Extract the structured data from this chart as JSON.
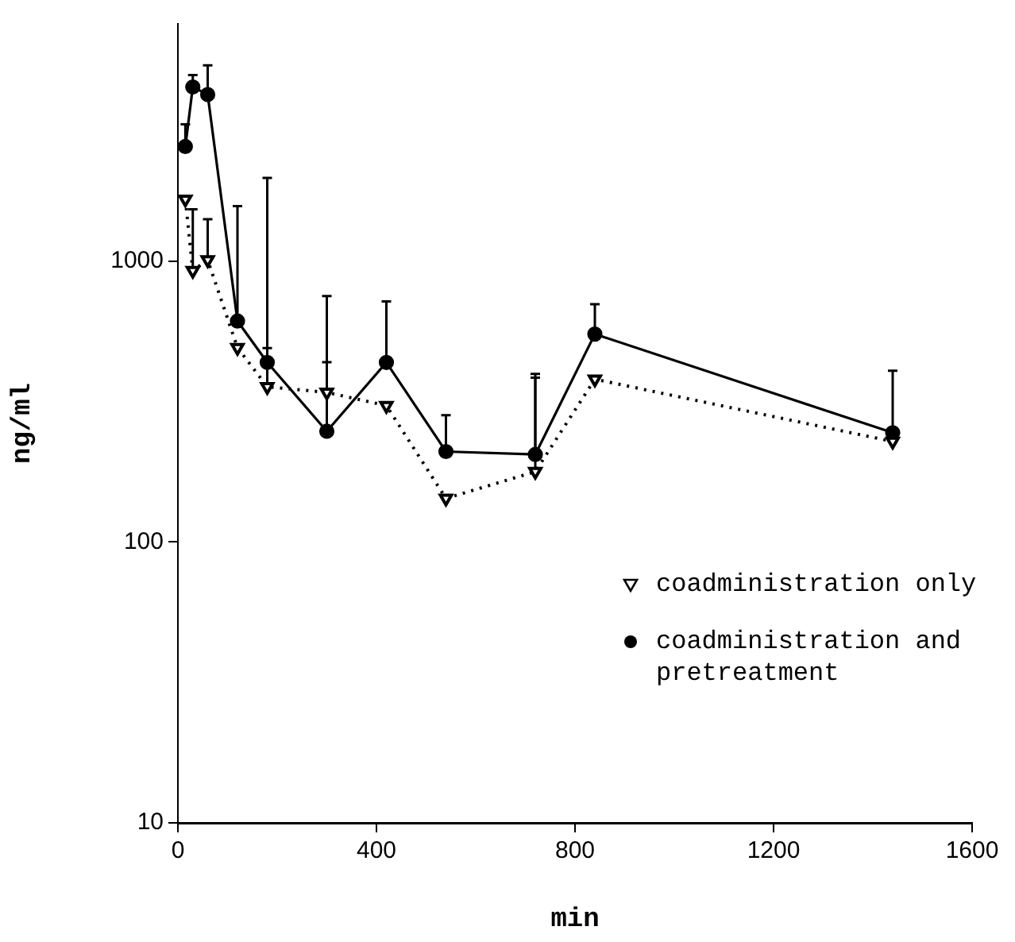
{
  "chart_data": {
    "type": "line",
    "xlabel": "min",
    "ylabel": "ng/ml",
    "log": "y",
    "xlim": [
      0,
      1600
    ],
    "xticks": [
      0,
      400,
      800,
      1200,
      1600
    ],
    "ylim": [
      10,
      7000
    ],
    "yticks": [
      10,
      100,
      1000
    ],
    "grid": false,
    "legend": "bottom right",
    "series": [
      {
        "name": "coadministration only",
        "color": "#000000",
        "marker": "triangle",
        "line_style": "dotted",
        "x": [
          15,
          30,
          60,
          120,
          180,
          300,
          420,
          540,
          720,
          840,
          1440
        ],
        "values": [
          1660,
          925,
          1010,
          492,
          357,
          341,
          306,
          143,
          178,
          380,
          228
        ],
        "errors": [
          null,
          [
            925,
            1530
          ],
          [
            1010,
            1410
          ],
          null,
          [
            357,
            490
          ],
          [
            341,
            437
          ],
          null,
          null,
          [
            178,
            385
          ],
          null,
          null
        ]
      },
      {
        "name": "coadministration and pretreatment",
        "color": "#000000",
        "marker": "circle",
        "line_style": "solid",
        "x": [
          15,
          30,
          60,
          120,
          180,
          300,
          420,
          540,
          720,
          840,
          1440
        ],
        "values": [
          2560,
          4170,
          3920,
          612,
          436,
          248,
          436,
          210,
          205,
          550,
          245
        ],
        "errors": [
          [
            2560,
            3070
          ],
          [
            4170,
            4600
          ],
          [
            3920,
            4980
          ],
          [
            612,
            1570
          ],
          [
            436,
            1980
          ],
          [
            248,
            751
          ],
          [
            436,
            719
          ],
          [
            210,
            283
          ],
          [
            205,
            397
          ],
          [
            550,
            703
          ],
          [
            245,
            407
          ]
        ]
      }
    ]
  }
}
